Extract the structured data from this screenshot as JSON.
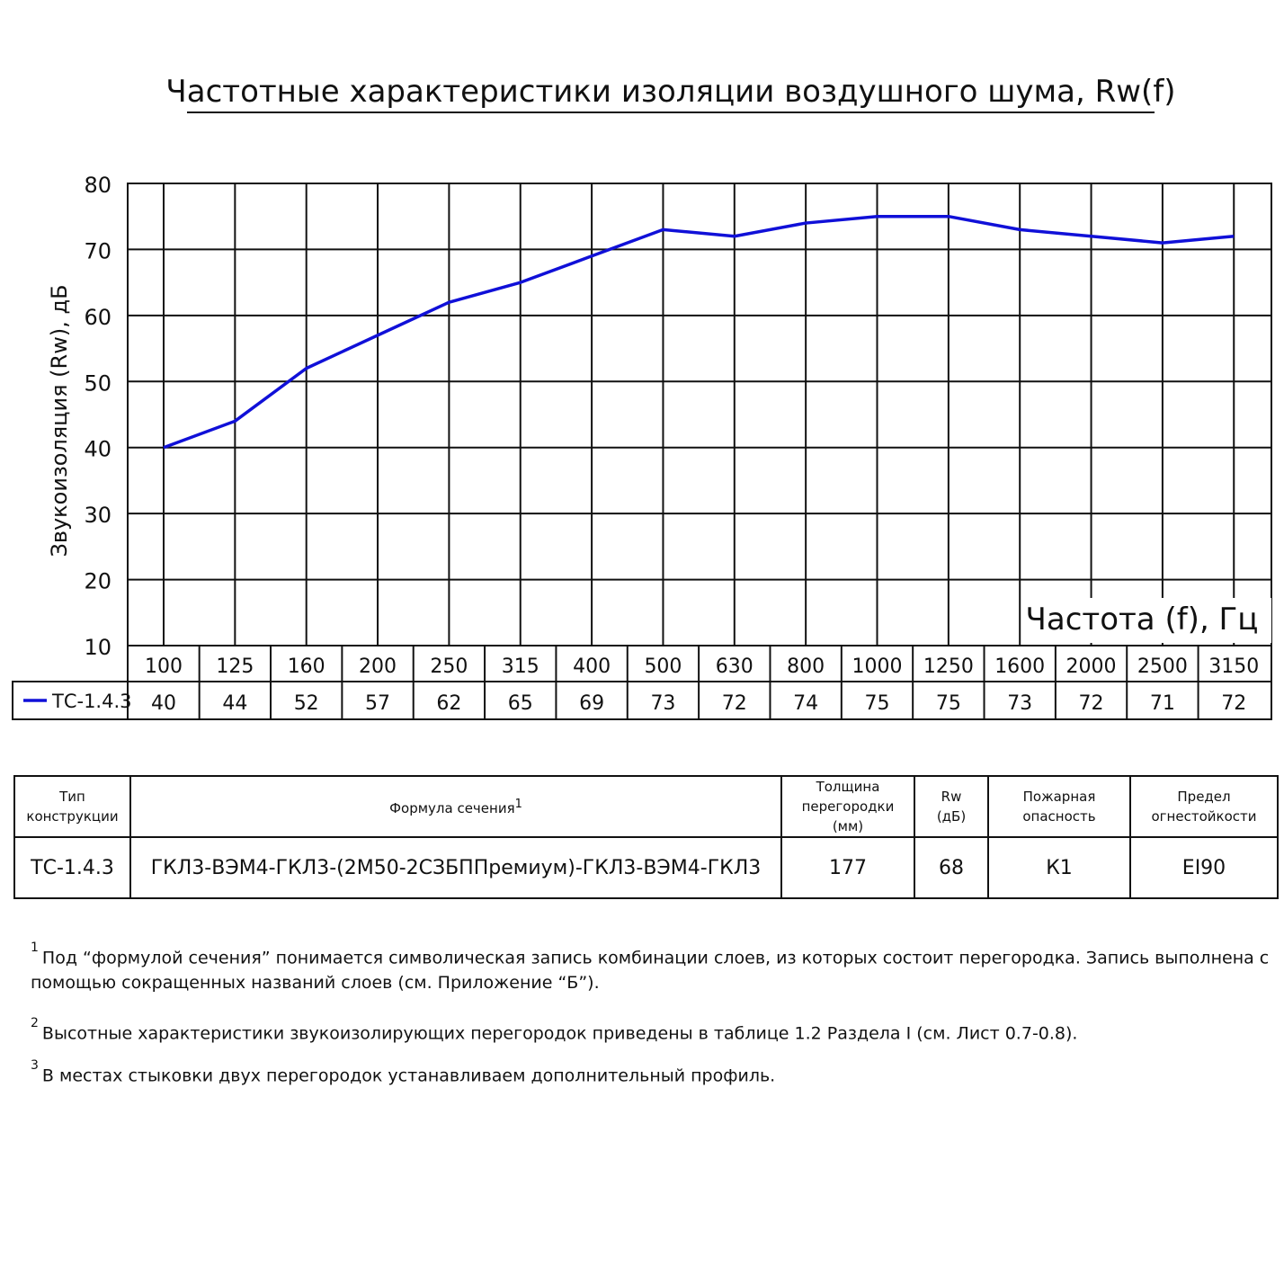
{
  "chart_data": {
    "type": "line",
    "title": "Частотные характеристики изоляции воздушного шума, Rw(f)",
    "xlabel": "Частота (f), Гц",
    "ylabel": "Звукоизоляция (Rw), дБ",
    "categories": [
      "100",
      "125",
      "160",
      "200",
      "250",
      "315",
      "400",
      "500",
      "630",
      "800",
      "1000",
      "1250",
      "1600",
      "2000",
      "2500",
      "3150"
    ],
    "series": [
      {
        "name": "ТС-1.4.3",
        "values": [
          40,
          44,
          52,
          57,
          62,
          65,
          69,
          73,
          72,
          74,
          75,
          75,
          73,
          72,
          71,
          72
        ]
      }
    ],
    "ylim": [
      10,
      80
    ],
    "yticks": [
      10,
      20,
      30,
      40,
      50,
      60,
      70,
      80
    ],
    "grid": true,
    "legend": "left of data table",
    "line_color": "#1010d8"
  },
  "table": {
    "headers": {
      "type": "Тип конструкции",
      "formula": "Формула сечения",
      "formula_sup": "1",
      "thickness": "Толщина перегородки (мм)",
      "rw_line1": "Rw",
      "rw_line2": "(дБ)",
      "fire_hazard": "Пожарная опасность",
      "fire_limit": "Предел огнестойкости"
    },
    "row": {
      "type": "ТС-1.4.3",
      "formula": "ГКЛ3-ВЭМ4-ГКЛ3-(2М50-2СЗБППремиум)-ГКЛ3-ВЭМ4-ГКЛ3",
      "thickness": "177",
      "rw": "68",
      "fire_hazard": "К1",
      "fire_limit": "EI90"
    }
  },
  "notes": [
    {
      "sup": "1",
      "text": "Под “формулой сечения” понимается символическая запись комбинации слоев, из которых состоит перегородка. Запись выполнена с помощью сокращенных названий слоев (см. Приложение “Б”)."
    },
    {
      "sup": "2",
      "text": "Высотные характеристики звукоизолирующих перегородок приведены в таблице 1.2 Раздела I (см. Лист 0.7-0.8)."
    },
    {
      "sup": "3",
      "text": "В местах стыковки двух перегородок устанавливаем дополнительный профиль."
    }
  ]
}
